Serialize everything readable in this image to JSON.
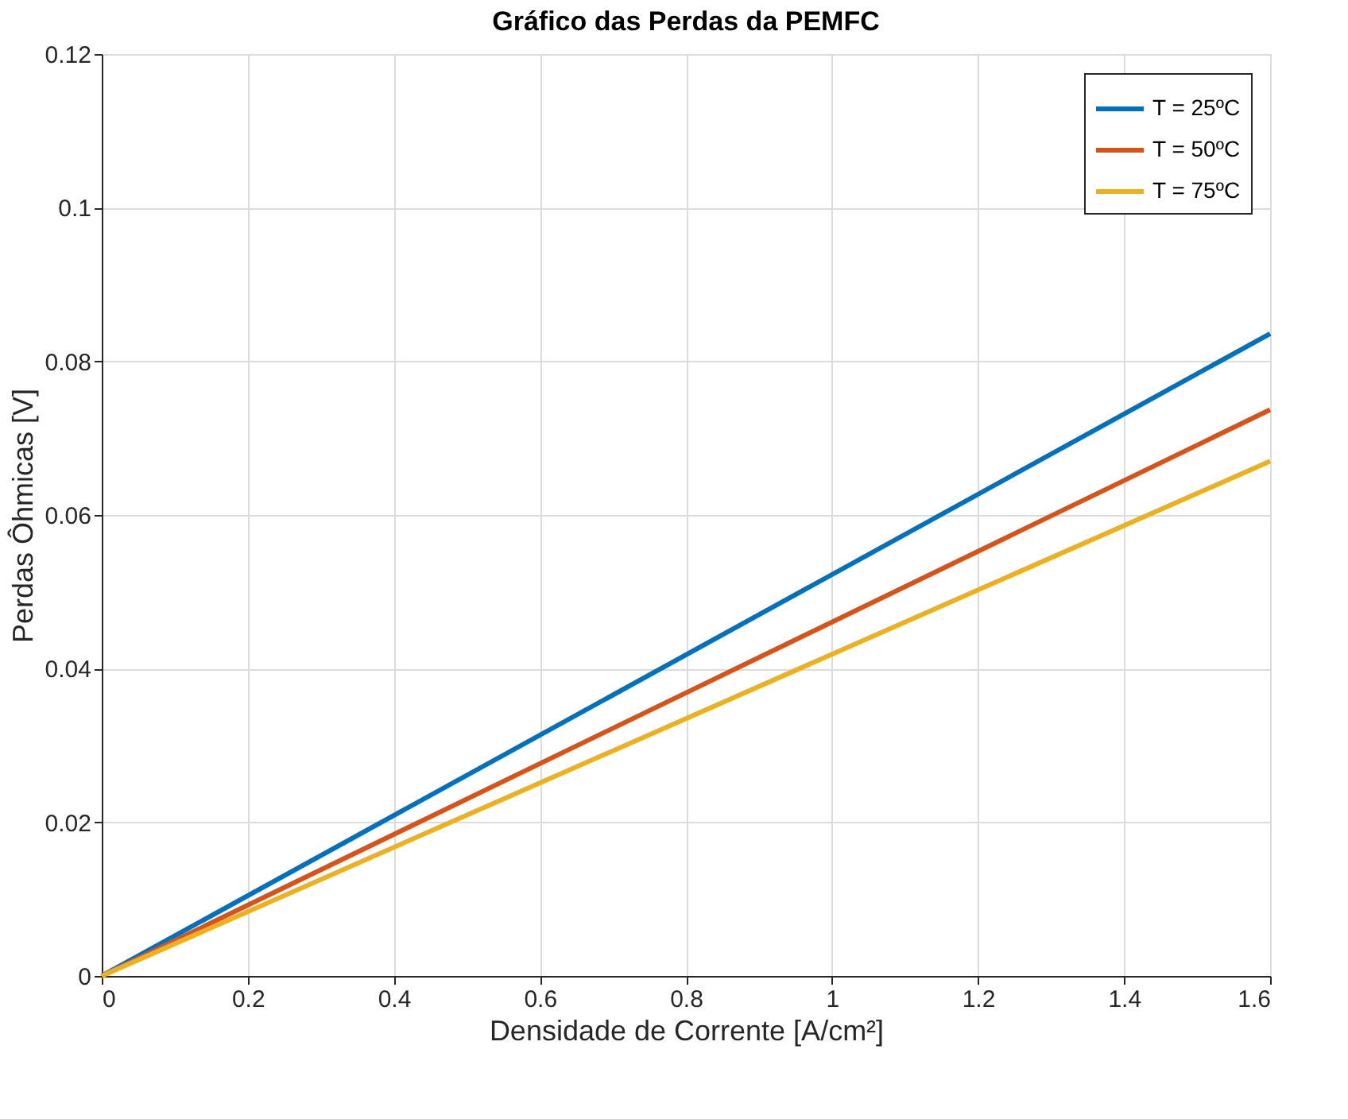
{
  "chart_data": {
    "type": "line",
    "title": "Gráfico das Perdas da PEMFC",
    "xlabel": "Densidade de Corrente [A/cm²]",
    "ylabel": "Perdas Ôhmicas [V]",
    "x": [
      0,
      1.6
    ],
    "series": [
      {
        "name": "T = 25ºC",
        "color": "#0072bd",
        "values": [
          0,
          0.0836
        ]
      },
      {
        "name": "T = 50ºC",
        "color": "#d95319",
        "values": [
          0,
          0.0737
        ]
      },
      {
        "name": "T = 75ºC",
        "color": "#edb120",
        "values": [
          0,
          0.067
        ]
      }
    ],
    "xlim": [
      0,
      1.6
    ],
    "xticks": [
      0,
      0.2,
      0.4,
      0.6,
      0.8,
      1,
      1.2,
      1.4,
      1.6
    ],
    "ylim": [
      0,
      0.12
    ],
    "yticks": [
      0,
      0.02,
      0.04,
      0.06,
      0.08,
      0.1,
      0.12
    ],
    "grid": true,
    "legend": "top right",
    "line_style": "solid"
  }
}
